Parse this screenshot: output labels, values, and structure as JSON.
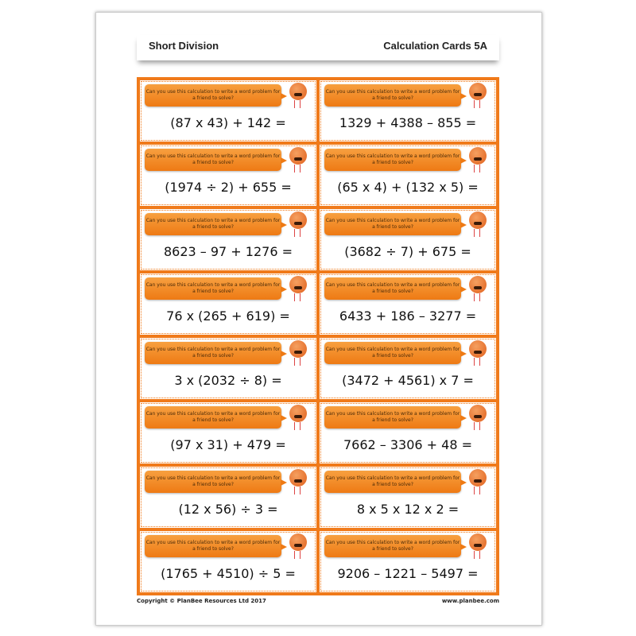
{
  "header": {
    "left": "Short Division",
    "right": "Calculation Cards 5A"
  },
  "prompt": "Can you use this calculation to write a word problem for a friend to solve?",
  "cards": [
    "(87 x 43) + 142 =",
    "1329 + 4388 – 855 =",
    "(1974 ÷ 2) + 655 =",
    "(65 x 4) + (132 x 5) =",
    "8623 – 97 + 1276 =",
    "(3682 ÷ 7) + 675 =",
    "76 x (265 + 619) =",
    "6433 + 186 – 3277 =",
    "3 x (2032 ÷ 8) =",
    "(3472 + 4561) x 7 =",
    "(97 x 31) + 479 =",
    "7662 – 3306 + 48 =",
    "(12 x 56) ÷ 3 =",
    "8 x 5 x 12 x 2 =",
    "(1765 + 4510) ÷ 5 =",
    "9206 – 1221 – 5497 ="
  ],
  "footer": {
    "copyright": "Copyright © PlanBee Resources Ltd 2017",
    "url": "www.planbee.com"
  },
  "colors": {
    "accent": "#f07a1a"
  }
}
